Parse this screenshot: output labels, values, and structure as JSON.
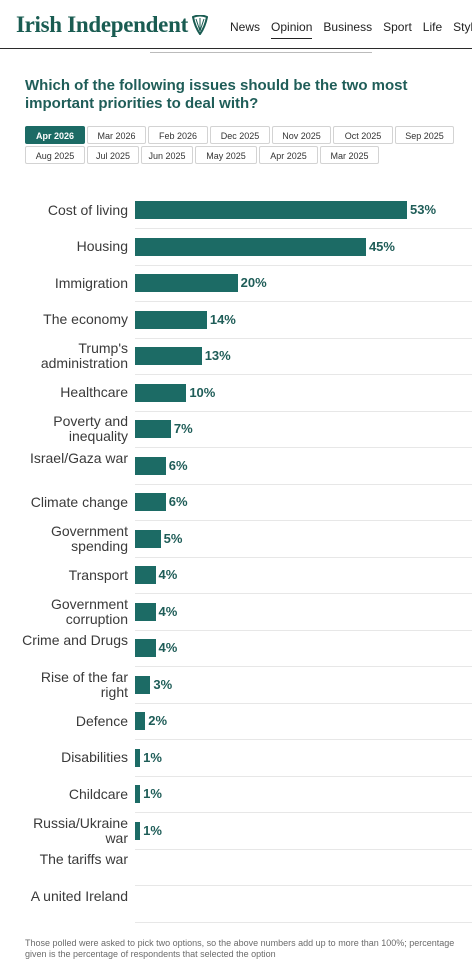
{
  "header": {
    "brand": "Irish Independent",
    "logo_icon": "harp-icon",
    "nav": [
      "News",
      "Opinion",
      "Business",
      "Sport",
      "Life",
      "Style"
    ],
    "active_nav": "Opinion"
  },
  "question": "Which of the following issues should be the two most important priorities to deal with?",
  "tabs": {
    "row1": [
      "Apr 2026",
      "Mar 2026",
      "Feb 2026",
      "Dec 2025",
      "Nov 2025",
      "Oct 2025",
      "Sep 2025"
    ],
    "row2": [
      "Aug 2025",
      "Jul 2025",
      "Jun 2025",
      "May 2025",
      "Apr 2025",
      "Mar 2025"
    ],
    "active": "Apr 2026"
  },
  "chart_data": {
    "type": "bar",
    "orientation": "horizontal",
    "categories": [
      "Cost of living",
      "Housing",
      "Immigration",
      "The economy",
      "Trump's administration",
      "Healthcare",
      "Poverty and inequality",
      "Israel/Gaza war",
      "Climate change",
      "Government spending",
      "Transport",
      "Government corruption",
      "Crime and Drugs",
      "Rise of the far right",
      "Defence",
      "Disabilities",
      "Childcare",
      "Russia/Ukraine war",
      "The tariffs war",
      "A united Ireland"
    ],
    "values": [
      53,
      45,
      20,
      14,
      13,
      10,
      7,
      6,
      6,
      5,
      4,
      4,
      4,
      3,
      2,
      1,
      1,
      1,
      null,
      null
    ],
    "labels": [
      "53%",
      "45%",
      "20%",
      "14%",
      "13%",
      "10%",
      "7%",
      "6%",
      "6%",
      "5%",
      "4%",
      "4%",
      "4%",
      "3%",
      "2%",
      "1%",
      "1%",
      "1%",
      "",
      ""
    ],
    "unit": "%",
    "xlim": [
      0,
      53
    ],
    "bar_color": "#1c6b65",
    "grid": false
  },
  "footnote": "Those polled were asked to pick two options, so the above numbers add up to more than 100%; percentage given is the percentage of respondents that selected the option"
}
